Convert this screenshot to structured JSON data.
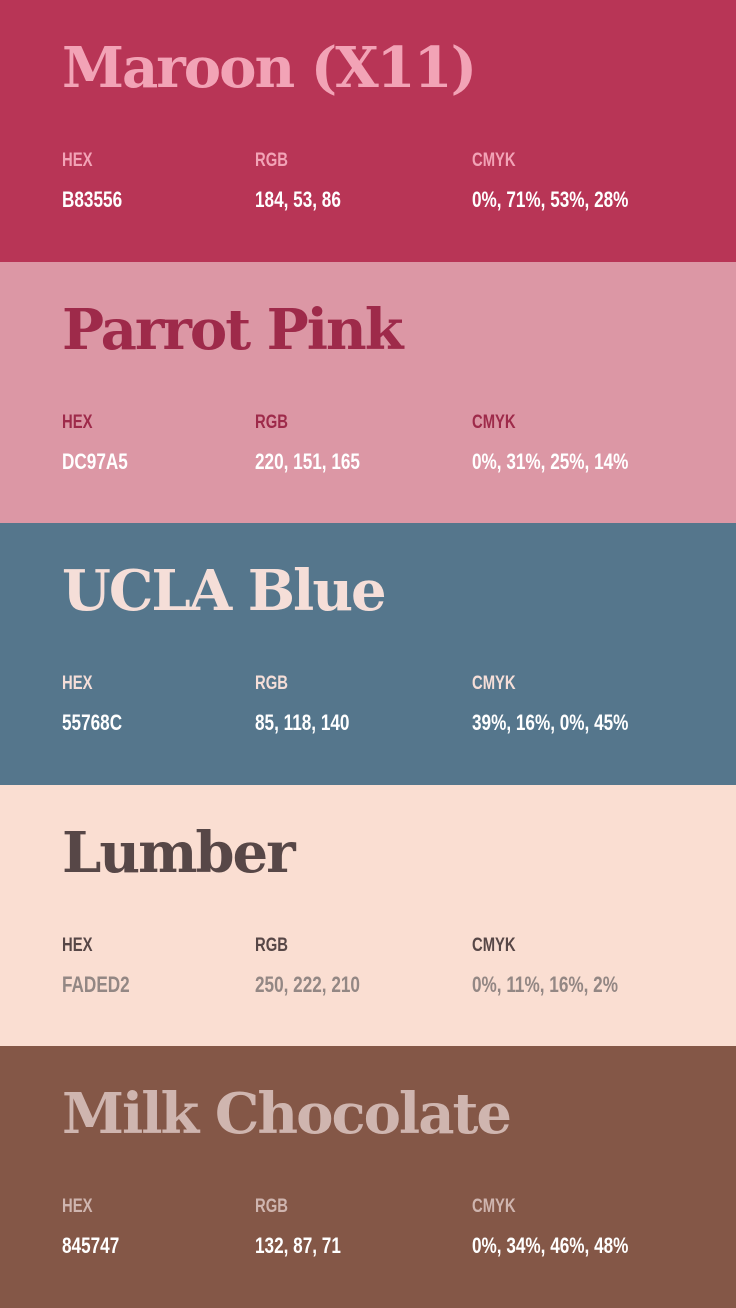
{
  "labels": {
    "hex": "HEX",
    "rgb": "RGB",
    "cmyk": "CMYK"
  },
  "swatches": [
    {
      "name": "Maroon (X11)",
      "hex": "B83556",
      "rgb": "184, 53, 86",
      "cmyk": "0%, 71%, 53%, 28%",
      "colors": {
        "background": "#B83556",
        "title": "#F2A3B6",
        "label": "#F2A3B6",
        "value": "#FFFFFF"
      }
    },
    {
      "name": "Parrot Pink",
      "hex": "DC97A5",
      "rgb": "220, 151, 165",
      "cmyk": "0%, 31%, 25%, 14%",
      "colors": {
        "background": "#DC97A5",
        "title": "#9E2A4A",
        "label": "#9E2A4A",
        "value": "#FFFFFF"
      }
    },
    {
      "name": "UCLA Blue",
      "hex": "55768C",
      "rgb": "85, 118, 140",
      "cmyk": "39%, 16%, 0%, 45%",
      "colors": {
        "background": "#55768C",
        "title": "#F5DED8",
        "label": "#F5DED8",
        "value": "#FFFFFF"
      }
    },
    {
      "name": "Lumber",
      "hex": "FADED2",
      "rgb": "250, 222, 210",
      "cmyk": "0%, 11%, 16%, 2%",
      "colors": {
        "background": "#FADED2",
        "title": "#574747",
        "label": "#574747",
        "value": "#938784"
      }
    },
    {
      "name": "Milk Chocolate",
      "hex": "845747",
      "rgb": "132, 87, 71",
      "cmyk": "0%, 34%, 46%, 48%",
      "colors": {
        "background": "#845747",
        "title": "#CFB5AF",
        "label": "#CFB5AF",
        "value": "#FFFFFF"
      }
    }
  ]
}
